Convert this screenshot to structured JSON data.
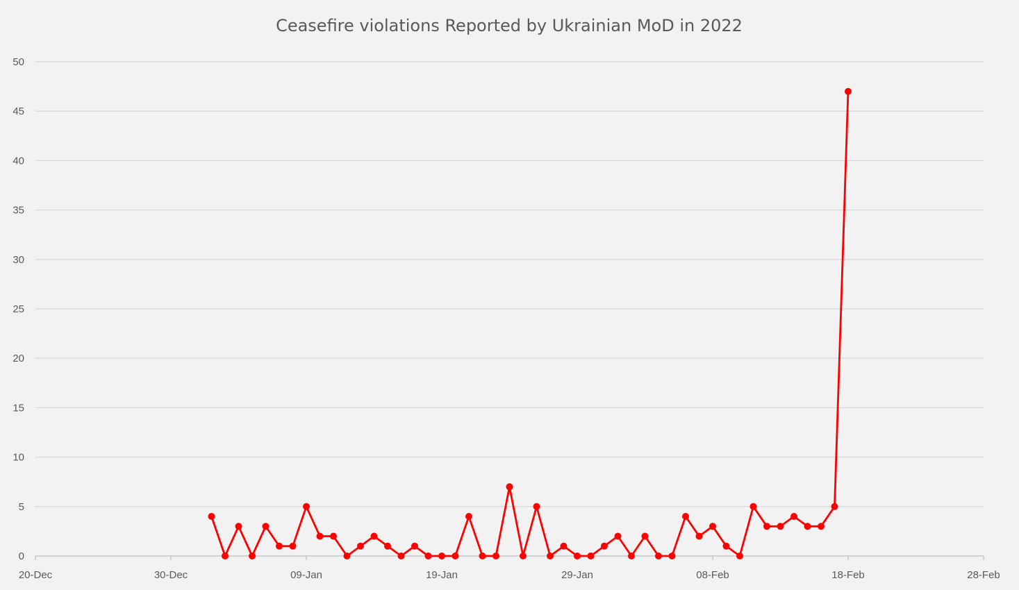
{
  "chart_data": {
    "type": "line",
    "title": "Ceasefire violations Reported by Ukrainian MoD in 2022",
    "xlabel": "",
    "ylabel": "",
    "x_axis": {
      "type": "date",
      "range": [
        "2021-12-20",
        "2022-02-28"
      ],
      "tick_labels": [
        "20-Dec",
        "30-Dec",
        "09-Jan",
        "19-Jan",
        "29-Jan",
        "08-Feb",
        "18-Feb",
        "28-Feb"
      ],
      "tick_dates": [
        "2021-12-20",
        "2021-12-30",
        "2022-01-09",
        "2022-01-19",
        "2022-01-29",
        "2022-02-08",
        "2022-02-18",
        "2022-02-28"
      ]
    },
    "y_axis": {
      "range": [
        0,
        50
      ],
      "tick_labels": [
        "0",
        "5",
        "10",
        "15",
        "20",
        "25",
        "30",
        "35",
        "40",
        "45",
        "50"
      ],
      "tick_values": [
        0,
        5,
        10,
        15,
        20,
        25,
        30,
        35,
        40,
        45,
        50
      ]
    },
    "grid": "horizontal",
    "legend": "none",
    "series": [
      {
        "color": "#ff0000",
        "x": [
          "2022-01-02",
          "2022-01-03",
          "2022-01-04",
          "2022-01-05",
          "2022-01-06",
          "2022-01-07",
          "2022-01-08",
          "2022-01-09",
          "2022-01-10",
          "2022-01-11",
          "2022-01-12",
          "2022-01-13",
          "2022-01-14",
          "2022-01-15",
          "2022-01-16",
          "2022-01-17",
          "2022-01-18",
          "2022-01-19",
          "2022-01-20",
          "2022-01-21",
          "2022-01-22",
          "2022-01-23",
          "2022-01-24",
          "2022-01-25",
          "2022-01-26",
          "2022-01-27",
          "2022-01-28",
          "2022-01-29",
          "2022-01-30",
          "2022-01-31",
          "2022-02-01",
          "2022-02-02",
          "2022-02-03",
          "2022-02-04",
          "2022-02-05",
          "2022-02-06",
          "2022-02-07",
          "2022-02-08",
          "2022-02-09",
          "2022-02-10",
          "2022-02-11",
          "2022-02-12",
          "2022-02-13",
          "2022-02-14",
          "2022-02-15",
          "2022-02-16",
          "2022-02-17",
          "2022-02-18"
        ],
        "values": [
          4,
          0,
          3,
          0,
          3,
          1,
          1,
          5,
          2,
          2,
          0,
          1,
          2,
          1,
          0,
          1,
          0,
          0,
          0,
          4,
          0,
          0,
          7,
          0,
          5,
          0,
          1,
          0,
          0,
          1,
          2,
          0,
          2,
          0,
          0,
          4,
          2,
          3,
          1,
          0,
          5,
          3,
          3,
          4,
          3,
          3,
          5,
          47
        ]
      }
    ]
  }
}
